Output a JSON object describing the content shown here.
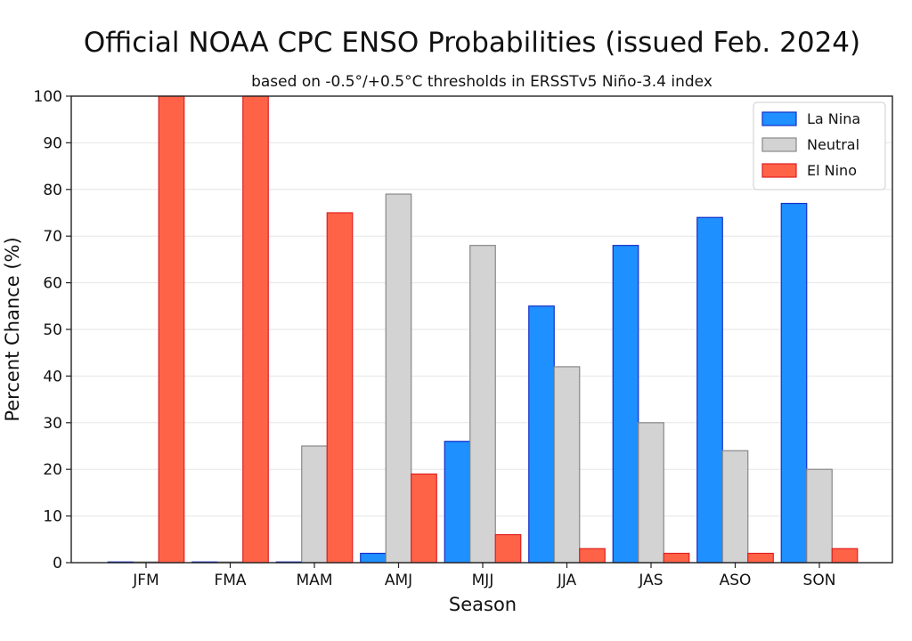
{
  "chart_data": {
    "type": "bar",
    "title": "Official NOAA CPC ENSO Probabilities (issued Feb. 2024)",
    "subtitle": "based on -0.5°/+0.5°C thresholds in ERSSTv5 Niño-3.4 index",
    "xlabel": "Season",
    "ylabel": "Percent Chance (%)",
    "ylim": [
      0,
      100
    ],
    "yticks": [
      0,
      10,
      20,
      30,
      40,
      50,
      60,
      70,
      80,
      90,
      100
    ],
    "categories": [
      "JFM",
      "FMA",
      "MAM",
      "AMJ",
      "MJJ",
      "JJA",
      "JAS",
      "ASO",
      "SON"
    ],
    "grid": "horizontal",
    "legend_position": "top-right",
    "series": [
      {
        "name": "La Nina",
        "color": "#1e90ff",
        "edge": "#1530c8",
        "values": [
          0,
          0,
          0,
          2,
          26,
          55,
          68,
          74,
          77
        ]
      },
      {
        "name": "Neutral",
        "color": "#d3d3d3",
        "edge": "#888888",
        "values": [
          0,
          0,
          25,
          79,
          68,
          42,
          30,
          24,
          20
        ]
      },
      {
        "name": "El Nino",
        "color": "#ff6347",
        "edge": "#e02020",
        "values": [
          100,
          100,
          75,
          19,
          6,
          3,
          2,
          2,
          3
        ]
      }
    ]
  }
}
